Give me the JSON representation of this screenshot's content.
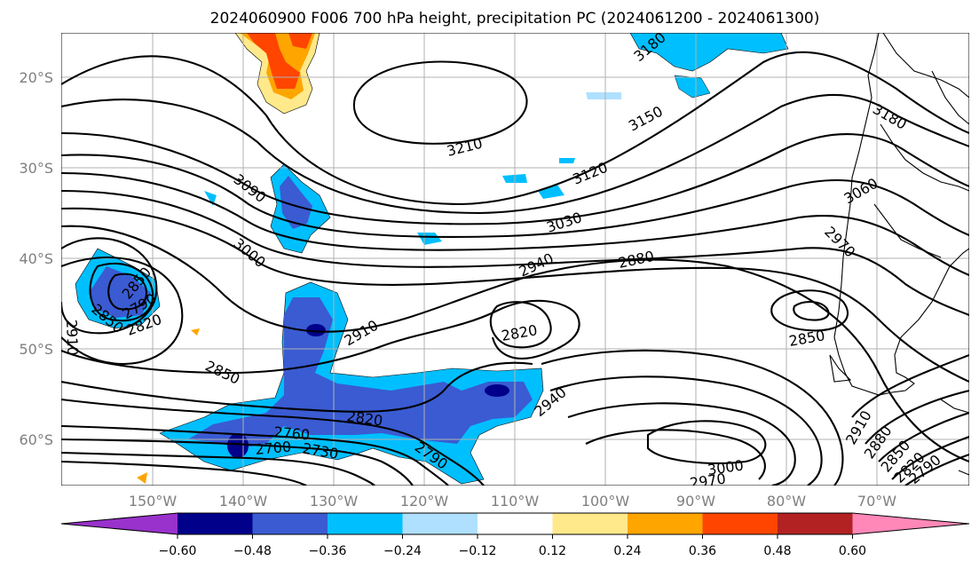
{
  "title": "2024060900 F006 700 hPa height, precipitation PC (2024061200 - 2024061300)",
  "lat_labels": [
    "20°S",
    "30°S",
    "40°S",
    "50°S",
    "60°S"
  ],
  "lon_labels": [
    "150°W",
    "140°W",
    "130°W",
    "120°W",
    "110°W",
    "100°W",
    "90°W",
    "80°W",
    "70°W"
  ],
  "colorbar": {
    "ticks": [
      "−0.60",
      "−0.48",
      "−0.36",
      "−0.24",
      "−0.12",
      "0.12",
      "0.24",
      "0.36",
      "0.48",
      "0.60"
    ],
    "colors": {
      "lt_neg060": "#9932cc",
      "neg060_neg048": "#00008b",
      "neg048_neg036": "#3a5bd2",
      "neg036_neg024": "#00bfff",
      "neg024_neg012": "#b0e0ff",
      "neg012_012": "#ffffff",
      "p012_024": "#ffe98a",
      "p024_036": "#ffa500",
      "p036_048": "#ff4500",
      "p048_060": "#b22222",
      "gt_060": "#ff88b8"
    }
  },
  "contour_labels": [
    "3180",
    "3210",
    "3150",
    "3120",
    "3090",
    "3060",
    "3030",
    "3000",
    "2970",
    "2940",
    "2880",
    "2910",
    "2850",
    "2820",
    "2790",
    "2820",
    "2850",
    "2910",
    "2850",
    "2820",
    "2760",
    "2730",
    "2700",
    "2790",
    "2940",
    "3000",
    "2970",
    "2910",
    "2880",
    "2850",
    "2820",
    "2790",
    "3180",
    "2850",
    "2850"
  ]
}
